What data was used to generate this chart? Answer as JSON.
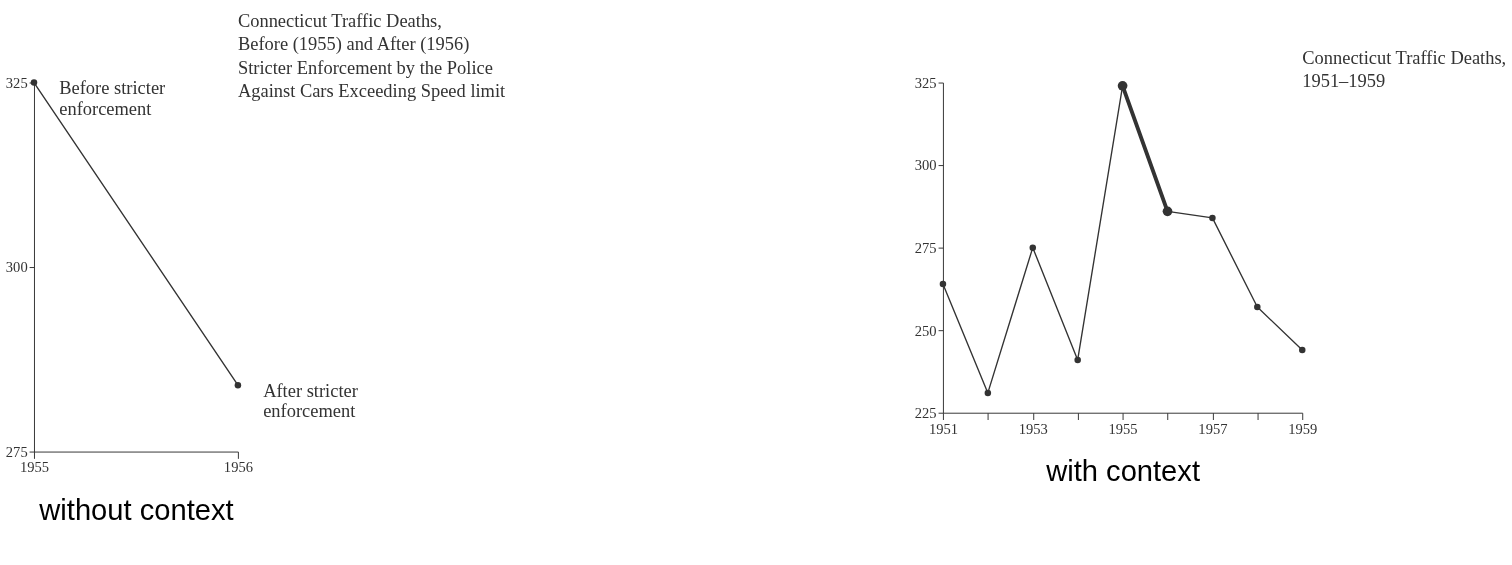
{
  "chart_data": [
    {
      "type": "line",
      "title": "Connecticut Traffic Deaths,\nBefore (1955) and After (1956)\nStricter Enforcement by the Police\nAgainst Cars Exceeding Speed limit",
      "xlabel": "without context",
      "marker": "circle",
      "x": [
        1955,
        1956
      ],
      "series": [
        {
          "color": "#333333",
          "values": [
            325,
            284
          ]
        }
      ],
      "xlim": [
        1955,
        1956
      ],
      "xticks": [
        1955,
        1956
      ],
      "ylim": [
        275,
        325
      ],
      "yticks": [
        275,
        300,
        325
      ],
      "annotations": [
        {
          "text": "Before stricter\nenforcement",
          "x": 1955,
          "y": 325
        },
        {
          "text": "After stricter\nenforcement",
          "x": 1956,
          "y": 284
        }
      ]
    },
    {
      "type": "line",
      "title": "Connecticut Traffic Deaths,\n1951–1959",
      "xlabel": "with context",
      "marker": "circle",
      "series": [
        {
          "color": "#333333",
          "x": [
            1951,
            1952,
            1953,
            1954,
            1955,
            1956,
            1957,
            1958,
            1959
          ],
          "values": [
            264,
            231,
            275,
            241,
            324,
            286,
            284,
            257,
            244
          ]
        },
        {
          "color": "#333333",
          "x": [
            1955,
            1956
          ],
          "values": [
            324,
            286
          ]
        }
      ],
      "xlim": [
        1951,
        1959
      ],
      "xticks": [
        1951,
        {
          "value": 1952,
          "label": null
        },
        1953,
        {
          "value": 1954,
          "label": null
        },
        1955,
        {
          "value": 1956,
          "label": null
        },
        1957,
        {
          "value": 1958,
          "label": null
        },
        1959
      ],
      "ylim": [
        225,
        325
      ],
      "yticks": [
        225,
        250,
        275,
        300,
        325
      ]
    }
  ]
}
